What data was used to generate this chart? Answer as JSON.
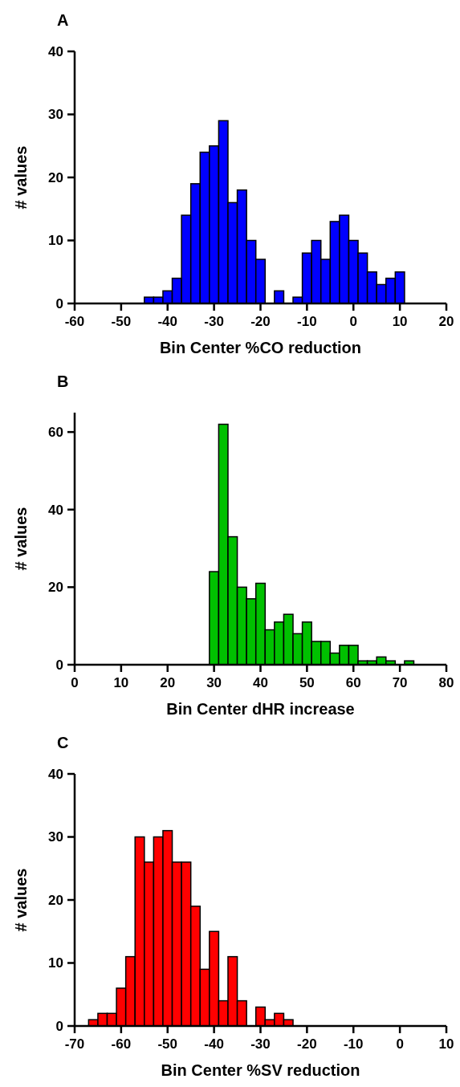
{
  "chart_data": [
    {
      "type": "histogram",
      "annotations": [
        "A"
      ],
      "xlabel": "Bin Center %CO reduction",
      "ylabel": "# values",
      "color": "#0000ff",
      "bins": [
        -45,
        -43,
        -41,
        -39,
        -37,
        -35,
        -33,
        -31,
        -29,
        -27,
        -25,
        -23,
        -21,
        -19,
        -17,
        -15,
        -13,
        -11,
        -9,
        -7,
        -5,
        -3,
        -1,
        1,
        3,
        5,
        7,
        9,
        11
      ],
      "values": [
        1,
        1,
        2,
        4,
        14,
        19,
        24,
        25,
        29,
        16,
        18,
        10,
        7,
        0,
        2,
        0,
        1,
        8,
        10,
        7,
        13,
        14,
        10,
        8,
        5,
        3,
        4,
        5
      ],
      "xlim": [
        -60,
        20
      ],
      "xticks": [
        -60,
        -50,
        -40,
        -30,
        -20,
        -10,
        0,
        10,
        20
      ],
      "ylim": [
        0,
        40
      ],
      "yticks": [
        0,
        10,
        20,
        30,
        40
      ]
    },
    {
      "type": "histogram",
      "annotations": [
        "B"
      ],
      "xlabel": "Bin Center dHR increase",
      "ylabel": "# values",
      "color": "#00c000",
      "bins": [
        29,
        31,
        33,
        35,
        37,
        39,
        41,
        43,
        45,
        47,
        49,
        51,
        53,
        55,
        57,
        59,
        61,
        63,
        65,
        67,
        69,
        71,
        73
      ],
      "values": [
        24,
        62,
        33,
        20,
        17,
        21,
        9,
        11,
        13,
        8,
        11,
        6,
        6,
        3,
        5,
        5,
        1,
        1,
        2,
        1,
        0,
        1
      ],
      "xlim": [
        0,
        80
      ],
      "xticks": [
        0,
        10,
        20,
        30,
        40,
        50,
        60,
        70,
        80
      ],
      "ylim": [
        0,
        65
      ],
      "yticks": [
        0,
        20,
        40,
        60
      ]
    },
    {
      "type": "histogram",
      "annotations": [
        "C"
      ],
      "xlabel": "Bin Center %SV reduction",
      "ylabel": "# values",
      "color": "#ff0000",
      "bins": [
        -67,
        -65,
        -63,
        -61,
        -59,
        -57,
        -55,
        -53,
        -51,
        -49,
        -47,
        -45,
        -43,
        -41,
        -39,
        -37,
        -35,
        -33,
        -31,
        -29,
        -27,
        -25,
        -23
      ],
      "values": [
        1,
        2,
        2,
        6,
        11,
        30,
        26,
        30,
        31,
        26,
        26,
        19,
        9,
        15,
        4,
        11,
        4,
        0,
        3,
        1,
        2,
        1
      ],
      "xlim": [
        -70,
        10
      ],
      "xticks": [
        -70,
        -60,
        -50,
        -40,
        -30,
        -20,
        -10,
        0,
        10
      ],
      "ylim": [
        0,
        40
      ],
      "yticks": [
        0,
        10,
        20,
        30,
        40
      ]
    }
  ]
}
